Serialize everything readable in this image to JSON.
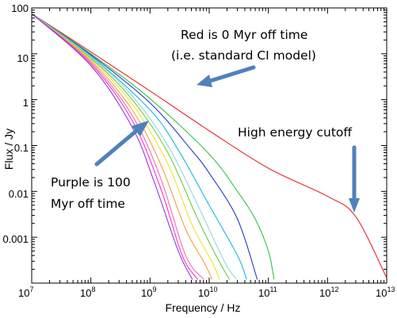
{
  "chart_data": {
    "type": "line",
    "x_scale": "log",
    "y_scale": "log",
    "xlabel": "Frequency / Hz",
    "ylabel": "Flux / Jy",
    "xlim": [
      10000000,
      10000000000000
    ],
    "ylim": [
      0.0001,
      100
    ],
    "x_ticks": [
      {
        "mant": "10",
        "exp": "7",
        "value": 10000000
      },
      {
        "mant": "10",
        "exp": "8",
        "value": 100000000
      },
      {
        "mant": "10",
        "exp": "9",
        "value": 1000000000
      },
      {
        "mant": "10",
        "exp": "10",
        "value": 10000000000
      },
      {
        "mant": "10",
        "exp": "11",
        "value": 100000000000
      },
      {
        "mant": "10",
        "exp": "12",
        "value": 1000000000000
      },
      {
        "mant": "10",
        "exp": "13",
        "value": 10000000000000
      }
    ],
    "y_ticks": [
      {
        "label": "100",
        "value": 100
      },
      {
        "label": "10",
        "value": 10
      },
      {
        "label": "1",
        "value": 1
      },
      {
        "label": "0.1",
        "value": 0.1
      },
      {
        "label": "0.01",
        "value": 0.01
      },
      {
        "label": "0.001",
        "value": 0.001
      }
    ],
    "series": [
      {
        "color": "#e8262a",
        "x": [
          10000000.0,
          100000000.0,
          1000000000.0,
          10000000000.0,
          100000000000.0,
          1000000000000.0,
          3000000000000.0,
          10000000000000.0
        ],
        "y": [
          75,
          11,
          1.55,
          0.21,
          0.032,
          0.0078,
          0.0028,
          0.00013
        ]
      },
      {
        "color": "#34c24a",
        "x": [
          10000000.0,
          100000000.0,
          1000000000.0,
          10000000000.0,
          30000000000.0,
          60000000000.0,
          100000000000.0,
          125000000000.0
        ],
        "y": [
          75,
          10,
          1.05,
          0.065,
          0.01,
          0.0025,
          0.0005,
          0.00012
        ]
      },
      {
        "color": "#2b36c9",
        "x": [
          10000000.0,
          100000000.0,
          1000000000.0,
          5000000000.0,
          10000000000.0,
          30000000000.0,
          65000000000.0
        ],
        "y": [
          75,
          9.5,
          0.85,
          0.08,
          0.025,
          0.0025,
          0.00012
        ]
      },
      {
        "color": "#17b8d8",
        "x": [
          10000000.0,
          100000000.0,
          1000000000.0,
          3000000000.0,
          10000000000.0,
          30000000000.0,
          43000000000.0
        ],
        "y": [
          75,
          9,
          0.6,
          0.08,
          0.005,
          0.0004,
          0.00012
        ]
      },
      {
        "color": "#8fd8dc",
        "x": [
          10000000.0,
          100000000.0,
          500000000.0,
          2000000000.0,
          6000000000.0,
          18000000000.0,
          29000000000.0
        ],
        "y": [
          75,
          8.5,
          1.2,
          0.1,
          0.006,
          0.0003,
          0.00012
        ]
      },
      {
        "color": "#6fc83a",
        "x": [
          10000000.0,
          100000000.0,
          500000000.0,
          2000000000.0,
          6000000000.0,
          13000000000.0,
          22000000000.0
        ],
        "y": [
          75,
          8,
          1.0,
          0.07,
          0.003,
          0.0004,
          0.00012
        ]
      },
      {
        "color": "#f0e22a",
        "x": [
          10000000.0,
          100000000.0,
          500000000.0,
          2000000000.0,
          5000000000.0,
          11000000000.0,
          15000000000.0
        ],
        "y": [
          75,
          7.5,
          0.8,
          0.04,
          0.002,
          0.0003,
          0.00012
        ]
      },
      {
        "color": "#f3a13b",
        "x": [
          10000000.0,
          100000000.0,
          500000000.0,
          1500000000.0,
          4000000000.0,
          8000000000.0,
          11300000000.0
        ],
        "y": [
          75,
          7,
          0.6,
          0.04,
          0.0015,
          0.0003,
          0.00012
        ]
      },
      {
        "color": "#ec6fb7",
        "x": [
          10000000.0,
          100000000.0,
          500000000.0,
          1500000000.0,
          4000000000.0,
          8200000000.0
        ],
        "y": [
          75,
          6.5,
          0.45,
          0.02,
          0.0004,
          0.00012
        ]
      },
      {
        "color": "#ff2ad0",
        "x": [
          10000000.0,
          100000000.0,
          500000000.0,
          1500000000.0,
          3500000000.0,
          6400000000.0
        ],
        "y": [
          75,
          6,
          0.35,
          0.012,
          0.0004,
          0.00012
        ]
      },
      {
        "color": "#8a3fd8",
        "x": [
          10000000.0,
          100000000.0,
          500000000.0,
          1200000000.0,
          3000000000.0,
          5200000000.0
        ],
        "y": [
          75,
          5.5,
          0.25,
          0.015,
          0.0005,
          0.00012
        ]
      }
    ],
    "annotations": [
      {
        "lines": [
          "Red is 0 Myr off time",
          "(i.e. standard CI model)"
        ]
      },
      {
        "lines": [
          "High energy cutoff"
        ]
      },
      {
        "lines": [
          "Purple is 100",
          "Myr off time"
        ]
      }
    ]
  }
}
